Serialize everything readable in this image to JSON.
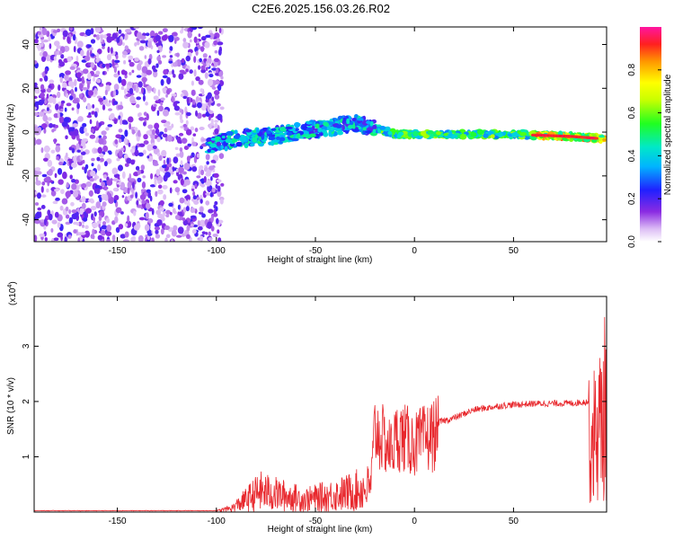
{
  "title": "C2E6.2025.156.03.26.R02",
  "chart_data": [
    {
      "type": "heatmap",
      "xlabel": "Height of straight line (km)",
      "ylabel": "Frequency (Hz)",
      "xlim": [
        -192,
        97
      ],
      "ylim": [
        -50,
        48
      ],
      "xticks": [
        -150,
        -100,
        -50,
        0,
        50
      ],
      "yticks": [
        -40,
        -20,
        0,
        20,
        40
      ],
      "colorbar": {
        "label": "Normalized spectral amplitude",
        "range": [
          0,
          1
        ],
        "ticks": [
          0.0,
          0.2,
          0.4,
          0.6,
          0.8
        ],
        "tick_labels": [
          "0.0",
          "0.2",
          "0.4",
          "0.6",
          "0.8"
        ]
      },
      "trace_center": [
        {
          "x": -104,
          "y": -6
        },
        {
          "x": -90,
          "y": -3
        },
        {
          "x": -75,
          "y": -2
        },
        {
          "x": -60,
          "y": 0
        },
        {
          "x": -45,
          "y": 2
        },
        {
          "x": -30,
          "y": 4
        },
        {
          "x": -20,
          "y": 2
        },
        {
          "x": -10,
          "y": -1
        },
        {
          "x": 0,
          "y": -1
        },
        {
          "x": 20,
          "y": -1
        },
        {
          "x": 50,
          "y": -1
        },
        {
          "x": 80,
          "y": -2
        },
        {
          "x": 94,
          "y": -3
        }
      ],
      "noise_region_x": [
        -192,
        -100
      ]
    },
    {
      "type": "line",
      "xlabel": "Height of straight line (km)",
      "ylabel": "SNR (10 * v/v)",
      "exponent_label": "(x10",
      "exponent": "4",
      "exponent_close": ")",
      "xlim": [
        -192,
        97
      ],
      "ylim": [
        0,
        3.9
      ],
      "xticks": [
        -150,
        -100,
        -50,
        0,
        50
      ],
      "yticks": [
        1,
        2,
        3
      ],
      "series": [
        {
          "color": "#e8282d",
          "envelope": [
            {
              "x": -192,
              "y": 0.02
            },
            {
              "x": -100,
              "y": 0.02
            },
            {
              "x": -92,
              "y": 0.1
            },
            {
              "x": -78,
              "y": 0.5
            },
            {
              "x": -55,
              "y": 0.3
            },
            {
              "x": -35,
              "y": 0.45
            },
            {
              "x": -22,
              "y": 0.6
            },
            {
              "x": -20,
              "y": 1.7
            },
            {
              "x": -12,
              "y": 1.3
            },
            {
              "x": -8,
              "y": 1.6
            },
            {
              "x": 0,
              "y": 1.4
            },
            {
              "x": 10,
              "y": 1.6
            },
            {
              "x": 20,
              "y": 1.7
            },
            {
              "x": 30,
              "y": 1.85
            },
            {
              "x": 45,
              "y": 1.93
            },
            {
              "x": 60,
              "y": 1.96
            },
            {
              "x": 80,
              "y": 1.97
            },
            {
              "x": 88,
              "y": 2.0
            },
            {
              "x": 93,
              "y": 2.4
            },
            {
              "x": 97,
              "y": 3.2
            }
          ]
        }
      ]
    }
  ]
}
